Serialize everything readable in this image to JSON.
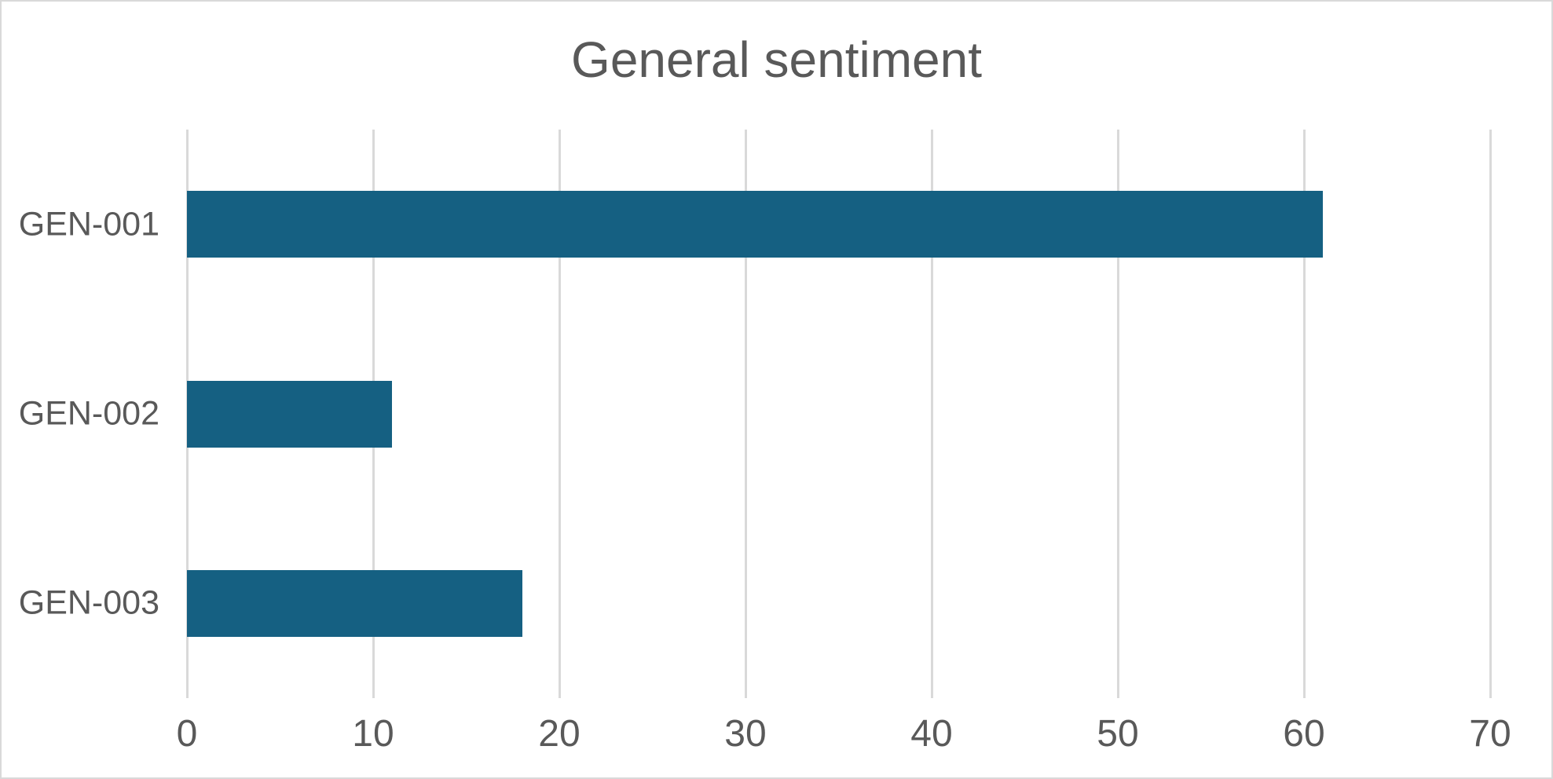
{
  "frame": {
    "background": "#ffffff",
    "border_color": "#d9d9d9"
  },
  "chart_data": {
    "type": "bar",
    "orientation": "horizontal",
    "title": "General sentiment",
    "categories": [
      "GEN-001",
      "GEN-002",
      "GEN-003"
    ],
    "values": [
      61,
      11,
      18
    ],
    "xlabel": "",
    "ylabel": "",
    "xlim": [
      0,
      70
    ],
    "xticks": [
      0,
      10,
      20,
      30,
      40,
      50,
      60,
      70
    ],
    "grid": true,
    "legend_position": "none",
    "colors": {
      "bar": "#156082",
      "gridline": "#d9d9d9",
      "text": "#595959"
    }
  }
}
